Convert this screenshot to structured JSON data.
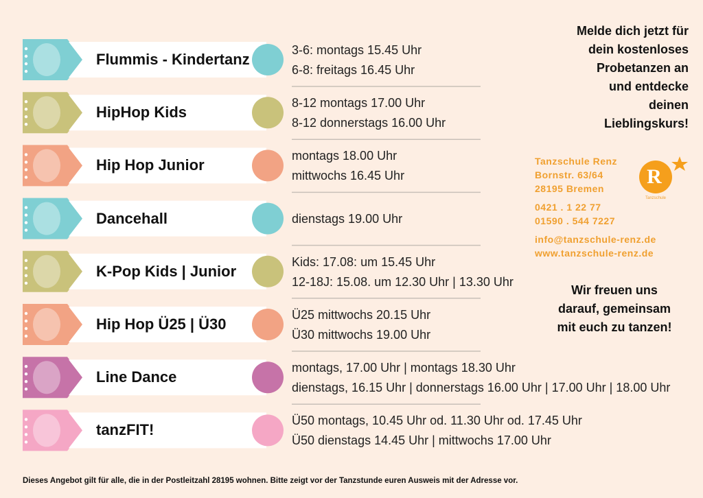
{
  "courses": [
    {
      "name": "Flummis - Kindertanz",
      "color": "#7fcfd3",
      "times": [
        "3-6: montags 15.45 Uhr",
        "6-8: freitags 16.45 Uhr"
      ]
    },
    {
      "name": "HipHop Kids",
      "color": "#c9c27b",
      "times": [
        "8-12 montags 17.00 Uhr",
        "8-12 donnerstags 16.00 Uhr"
      ]
    },
    {
      "name": "Hip Hop Junior",
      "color": "#f2a384",
      "times": [
        "montags 18.00 Uhr",
        "mittwochs 16.45 Uhr"
      ]
    },
    {
      "name": "Dancehall",
      "color": "#7fcfd3",
      "times": [
        "dienstags 19.00 Uhr"
      ]
    },
    {
      "name": "K-Pop Kids | Junior",
      "color": "#c9c27b",
      "times": [
        "Kids: 17.08: um 15.45 Uhr",
        "12-18J: 15.08. um 12.30 Uhr | 13.30 Uhr"
      ]
    },
    {
      "name": "Hip Hop Ü25 |  Ü30",
      "color": "#f2a384",
      "times": [
        "Ü25 mittwochs 20.15 Uhr",
        "Ü30 mittwochs 19.00 Uhr"
      ]
    },
    {
      "name": "Line Dance",
      "color": "#c673a8",
      "times": [
        "montags, 17.00 Uhr | montags 18.30 Uhr",
        "dienstags, 16.15 Uhr | donnerstags 16.00 Uhr | 17.00 Uhr | 18.00 Uhr"
      ]
    },
    {
      "name": "tanzFIT!",
      "color": "#f5a7c5",
      "times": [
        "Ü50 montags, 10.45 Uhr od. 11.30 Uhr od. 17.45 Uhr",
        "Ü50 dienstags 14.45 Uhr | mittwochs 17.00 Uhr"
      ]
    }
  ],
  "invitation": [
    "Melde dich jetzt für",
    "dein kostenloses",
    "Probetanzen an",
    "und entdecke",
    "deinen",
    "Lieblingskurs!"
  ],
  "contact": {
    "school": "Tanzschule Renz",
    "street": "Bornstr. 63/64",
    "city": "28195 Bremen",
    "phone": "0421 . 1 22 77",
    "mobile": "01590 . 544 7227",
    "email": "info@tanzschule-renz.de",
    "web": "www.tanzschule-renz.de"
  },
  "logo": {
    "letter": "R",
    "caption": "Tanzschule"
  },
  "closing": [
    "Wir freuen uns",
    "darauf, gemeinsam",
    "mit euch zu tanzen!"
  ],
  "footer": "Dieses Angebot gilt für alle, die in der Postleitzahl 28195 wohnen. Bitte zeigt vor der Tanzstunde euren Ausweis mit der Adresse vor."
}
